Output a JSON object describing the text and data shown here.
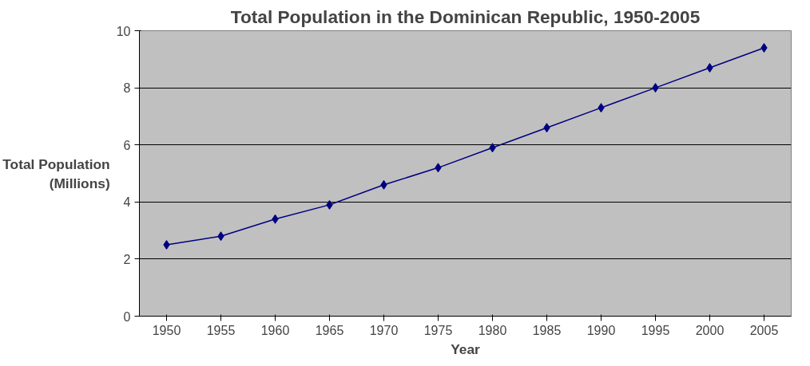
{
  "chart_data": {
    "type": "line",
    "title": "Total Population in the Dominican Republic, 1950-2005",
    "xlabel": "Year",
    "ylabel": "Total Population\n(Millions)",
    "categories": [
      "1950",
      "1955",
      "1960",
      "1965",
      "1970",
      "1975",
      "1980",
      "1985",
      "1990",
      "1995",
      "2000",
      "2005"
    ],
    "series": [
      {
        "color": "#000080",
        "values": [
          2.5,
          2.8,
          3.4,
          3.9,
          4.6,
          5.2,
          5.9,
          6.6,
          7.3,
          8.0,
          8.7,
          9.4
        ]
      }
    ],
    "ylim": [
      0,
      10
    ],
    "yticks": [
      0,
      2,
      4,
      6,
      8,
      10
    ],
    "grid": "y",
    "marker": "diamond",
    "line_style": "solid"
  }
}
